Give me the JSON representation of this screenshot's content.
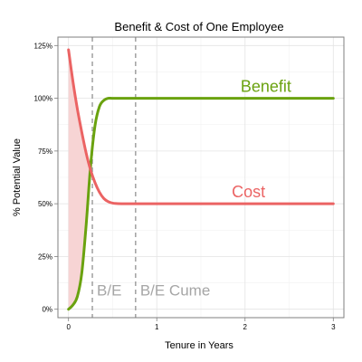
{
  "chart_data": {
    "type": "line",
    "title": "Benefit & Cost of One Employee",
    "xlabel": "Tenure in Years",
    "ylabel": "% Potential Value",
    "xlim": [
      -0.12,
      3.12
    ],
    "ylim": [
      -0.04,
      1.29
    ],
    "x_ticks": [
      0,
      1,
      2,
      3
    ],
    "x_tick_labels": [
      "0",
      "1",
      "2",
      "3"
    ],
    "y_ticks": [
      0,
      0.25,
      0.5,
      0.75,
      1.0,
      1.25
    ],
    "y_tick_labels": [
      "0%",
      "25%",
      "50%",
      "75%",
      "100%",
      "125%"
    ],
    "grid": true,
    "series": [
      {
        "name": "Benefit",
        "color": "#6aa20f",
        "x": [
          0,
          0.05,
          0.1,
          0.15,
          0.2,
          0.25,
          0.3,
          0.35,
          0.4,
          0.45,
          0.5,
          0.6,
          0.75,
          1.0,
          1.5,
          2.0,
          2.5,
          3.0
        ],
        "values": [
          0.0,
          0.02,
          0.06,
          0.17,
          0.4,
          0.68,
          0.87,
          0.96,
          0.99,
          1.0,
          1.0,
          1.0,
          1.0,
          1.0,
          1.0,
          1.0,
          1.0,
          1.0
        ]
      },
      {
        "name": "Cost",
        "color": "#eb6363",
        "x": [
          0,
          0.05,
          0.1,
          0.15,
          0.2,
          0.25,
          0.3,
          0.35,
          0.4,
          0.45,
          0.5,
          0.6,
          0.75,
          1.0,
          1.5,
          2.0,
          2.5,
          3.0
        ],
        "values": [
          1.23,
          1.08,
          0.95,
          0.84,
          0.74,
          0.66,
          0.6,
          0.555,
          0.525,
          0.51,
          0.503,
          0.5,
          0.5,
          0.5,
          0.5,
          0.5,
          0.5,
          0.5
        ]
      }
    ],
    "shaded_area": {
      "between": [
        "Cost",
        "Benefit"
      ],
      "x_from": 0,
      "x_to": 0.27,
      "color": "#f7d4d4"
    },
    "vlines": [
      {
        "x": 0.27,
        "label": "B/E",
        "color": "#999999",
        "style": "dashed"
      },
      {
        "x": 0.76,
        "label": "B/E Cume",
        "color": "#999999",
        "style": "dashed"
      }
    ],
    "annotations": [
      {
        "text": "Benefit",
        "x": 1.95,
        "y": 1.03,
        "color": "#6aa20f"
      },
      {
        "text": "Cost",
        "x": 1.85,
        "y": 0.53,
        "color": "#eb6363"
      }
    ]
  }
}
